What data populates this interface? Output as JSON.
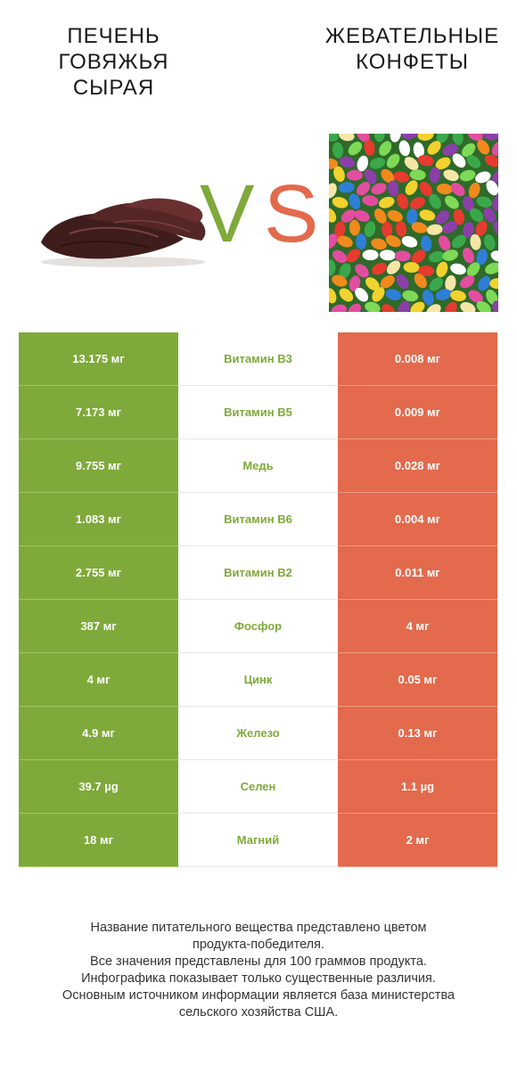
{
  "header": {
    "left_title": [
      "ПЕЧЕНЬ",
      "ГОВЯЖЬЯ",
      "СЫРАЯ"
    ],
    "right_title": [
      "ЖЕВАТЕЛЬНЫЕ",
      "КОНФЕТЫ"
    ],
    "vs_v": "V",
    "vs_s": "S"
  },
  "colors": {
    "winner_left": "#7fa93a",
    "winner_right": "#e36a4c"
  },
  "rows": [
    {
      "left": "13.175 мг",
      "name": "Витамин B3",
      "right": "0.008 мг"
    },
    {
      "left": "7.173 мг",
      "name": "Витамин B5",
      "right": "0.009 мг"
    },
    {
      "left": "9.755 мг",
      "name": "Медь",
      "right": "0.028 мг"
    },
    {
      "left": "1.083 мг",
      "name": "Витамин B6",
      "right": "0.004 мг"
    },
    {
      "left": "2.755 мг",
      "name": "Витамин B2",
      "right": "0.011 мг"
    },
    {
      "left": "387 мг",
      "name": "Фосфор",
      "right": "4 мг"
    },
    {
      "left": "4 мг",
      "name": "Цинк",
      "right": "0.05 мг"
    },
    {
      "left": "4.9 мг",
      "name": "Железо",
      "right": "0.13 мг"
    },
    {
      "left": "39.7 µg",
      "name": "Селен",
      "right": "1.1 µg"
    },
    {
      "left": "18 мг",
      "name": "Магний",
      "right": "2 мг"
    }
  ],
  "footer": [
    "Название питательного вещества представлено цветом",
    "продукта-победителя.",
    "Все значения представлены для 100 граммов продукта.",
    "Инфографика показывает только существенные различия.",
    "Основным источником информации является база министерства",
    "сельского хозяйства США."
  ]
}
